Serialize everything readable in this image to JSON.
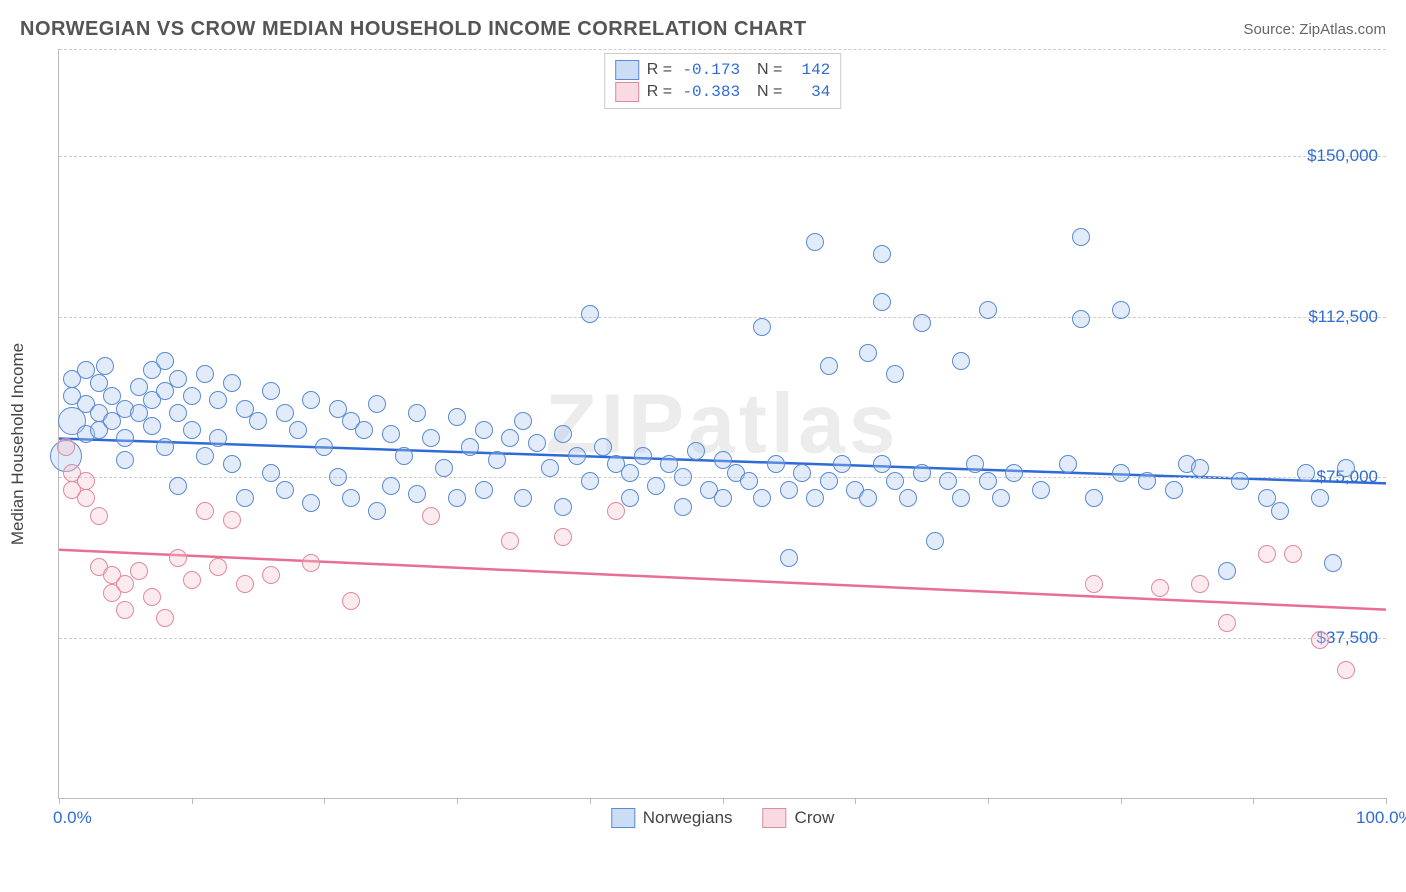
{
  "header": {
    "title": "NORWEGIAN VS CROW MEDIAN HOUSEHOLD INCOME CORRELATION CHART",
    "source": "Source: ZipAtlas.com"
  },
  "watermark": "ZIPatlas",
  "chart": {
    "type": "scatter",
    "ylabel": "Median Household Income",
    "x_min": 0,
    "x_max": 100,
    "y_min": 0,
    "y_max": 175000,
    "y_gridlines": [
      37500,
      75000,
      112500,
      150000,
      175000
    ],
    "y_tick_labels": {
      "37500": "$37,500",
      "75000": "$75,000",
      "112500": "$112,500",
      "150000": "$150,000"
    },
    "x_ticks": [
      0,
      10,
      20,
      30,
      40,
      50,
      60,
      70,
      80,
      90,
      100
    ],
    "x_tick_labels": {
      "0": "0.0%",
      "100": "100.0%"
    },
    "grid_color": "#cccccc",
    "axis_color": "#bbbbbb",
    "tick_label_color": "#2e6bd6",
    "background_color": "#ffffff",
    "dot_radius": 9,
    "dot_border_width": 1.5,
    "dot_fill_opacity": 0.35
  },
  "series": [
    {
      "name": "Norwegians",
      "color_fill": "#a9c6ef",
      "color_border": "#5b8bd4",
      "color_line": "#2e6bd6",
      "R": "-0.173",
      "N": "142",
      "trend_y_start": 84000,
      "trend_y_end": 73500,
      "points": [
        [
          1,
          98000
        ],
        [
          1,
          94000
        ],
        [
          1,
          88000,
          14
        ],
        [
          0.5,
          80000,
          16
        ],
        [
          2,
          100000
        ],
        [
          2,
          92000
        ],
        [
          2,
          85000
        ],
        [
          3,
          97000
        ],
        [
          3,
          90000
        ],
        [
          3,
          86000
        ],
        [
          3.5,
          101000
        ],
        [
          4,
          94000
        ],
        [
          4,
          88000
        ],
        [
          5,
          91000
        ],
        [
          5,
          84000
        ],
        [
          5,
          79000
        ],
        [
          6,
          96000
        ],
        [
          6,
          90000
        ],
        [
          7,
          100000
        ],
        [
          7,
          93000
        ],
        [
          7,
          87000
        ],
        [
          8,
          102000
        ],
        [
          8,
          95000
        ],
        [
          8,
          82000
        ],
        [
          9,
          98000
        ],
        [
          9,
          90000
        ],
        [
          9,
          73000
        ],
        [
          10,
          94000
        ],
        [
          10,
          86000
        ],
        [
          11,
          99000
        ],
        [
          11,
          80000
        ],
        [
          12,
          93000
        ],
        [
          12,
          84000
        ],
        [
          13,
          97000
        ],
        [
          13,
          78000
        ],
        [
          14,
          91000
        ],
        [
          14,
          70000
        ],
        [
          15,
          88000
        ],
        [
          16,
          95000
        ],
        [
          16,
          76000
        ],
        [
          17,
          90000
        ],
        [
          17,
          72000
        ],
        [
          18,
          86000
        ],
        [
          19,
          93000
        ],
        [
          19,
          69000
        ],
        [
          20,
          82000
        ],
        [
          21,
          91000
        ],
        [
          21,
          75000
        ],
        [
          22,
          88000
        ],
        [
          22,
          70000
        ],
        [
          23,
          86000
        ],
        [
          24,
          92000
        ],
        [
          24,
          67000
        ],
        [
          25,
          85000
        ],
        [
          25,
          73000
        ],
        [
          26,
          80000
        ],
        [
          27,
          90000
        ],
        [
          27,
          71000
        ],
        [
          28,
          84000
        ],
        [
          29,
          77000
        ],
        [
          30,
          89000
        ],
        [
          30,
          70000
        ],
        [
          31,
          82000
        ],
        [
          32,
          86000
        ],
        [
          32,
          72000
        ],
        [
          33,
          79000
        ],
        [
          34,
          84000
        ],
        [
          35,
          88000
        ],
        [
          35,
          70000
        ],
        [
          36,
          83000
        ],
        [
          37,
          77000
        ],
        [
          38,
          85000
        ],
        [
          38,
          68000
        ],
        [
          39,
          80000
        ],
        [
          40,
          113000
        ],
        [
          40,
          74000
        ],
        [
          41,
          82000
        ],
        [
          42,
          78000
        ],
        [
          43,
          76000
        ],
        [
          43,
          70000
        ],
        [
          44,
          80000
        ],
        [
          45,
          73000
        ],
        [
          46,
          78000
        ],
        [
          47,
          75000
        ],
        [
          47,
          68000
        ],
        [
          48,
          81000
        ],
        [
          49,
          72000
        ],
        [
          50,
          79000
        ],
        [
          50,
          70000
        ],
        [
          51,
          76000
        ],
        [
          52,
          74000
        ],
        [
          53,
          110000
        ],
        [
          53,
          70000
        ],
        [
          54,
          78000
        ],
        [
          55,
          72000
        ],
        [
          55,
          56000
        ],
        [
          56,
          76000
        ],
        [
          57,
          130000
        ],
        [
          57,
          70000
        ],
        [
          58,
          101000
        ],
        [
          58,
          74000
        ],
        [
          59,
          78000
        ],
        [
          60,
          72000
        ],
        [
          61,
          104000
        ],
        [
          61,
          70000
        ],
        [
          62,
          127000
        ],
        [
          62,
          116000
        ],
        [
          62,
          78000
        ],
        [
          63,
          99000
        ],
        [
          63,
          74000
        ],
        [
          64,
          70000
        ],
        [
          65,
          111000
        ],
        [
          65,
          76000
        ],
        [
          66,
          60000
        ],
        [
          67,
          74000
        ],
        [
          68,
          102000
        ],
        [
          68,
          70000
        ],
        [
          69,
          78000
        ],
        [
          70,
          114000
        ],
        [
          70,
          74000
        ],
        [
          71,
          70000
        ],
        [
          72,
          76000
        ],
        [
          74,
          72000
        ],
        [
          76,
          78000
        ],
        [
          77,
          112000
        ],
        [
          77,
          131000
        ],
        [
          78,
          70000
        ],
        [
          80,
          76000
        ],
        [
          80,
          114000
        ],
        [
          82,
          74000
        ],
        [
          84,
          72000
        ],
        [
          85,
          78000
        ],
        [
          86,
          77000
        ],
        [
          88,
          53000
        ],
        [
          89,
          74000
        ],
        [
          91,
          70000
        ],
        [
          92,
          67000
        ],
        [
          94,
          76000
        ],
        [
          95,
          70000
        ],
        [
          96,
          55000
        ],
        [
          97,
          77000
        ]
      ]
    },
    {
      "name": "Crow",
      "color_fill": "#f4c2cf",
      "color_border": "#e08aa0",
      "color_line": "#e86f91",
      "R": "-0.383",
      "N": "34",
      "trend_y_start": 58000,
      "trend_y_end": 44000,
      "points": [
        [
          0.5,
          82000
        ],
        [
          1,
          76000
        ],
        [
          1,
          72000
        ],
        [
          2,
          74000
        ],
        [
          2,
          70000
        ],
        [
          3,
          66000
        ],
        [
          3,
          54000
        ],
        [
          4,
          52000
        ],
        [
          4,
          48000
        ],
        [
          5,
          50000
        ],
        [
          5,
          44000
        ],
        [
          6,
          53000
        ],
        [
          7,
          47000
        ],
        [
          8,
          42000
        ],
        [
          9,
          56000
        ],
        [
          10,
          51000
        ],
        [
          11,
          67000
        ],
        [
          12,
          54000
        ],
        [
          13,
          65000
        ],
        [
          14,
          50000
        ],
        [
          16,
          52000
        ],
        [
          19,
          55000
        ],
        [
          22,
          46000
        ],
        [
          28,
          66000
        ],
        [
          34,
          60000
        ],
        [
          38,
          61000
        ],
        [
          42,
          67000
        ],
        [
          78,
          50000
        ],
        [
          83,
          49000
        ],
        [
          86,
          50000
        ],
        [
          88,
          41000
        ],
        [
          91,
          57000
        ],
        [
          93,
          57000
        ],
        [
          95,
          37000
        ],
        [
          97,
          30000
        ]
      ]
    }
  ]
}
